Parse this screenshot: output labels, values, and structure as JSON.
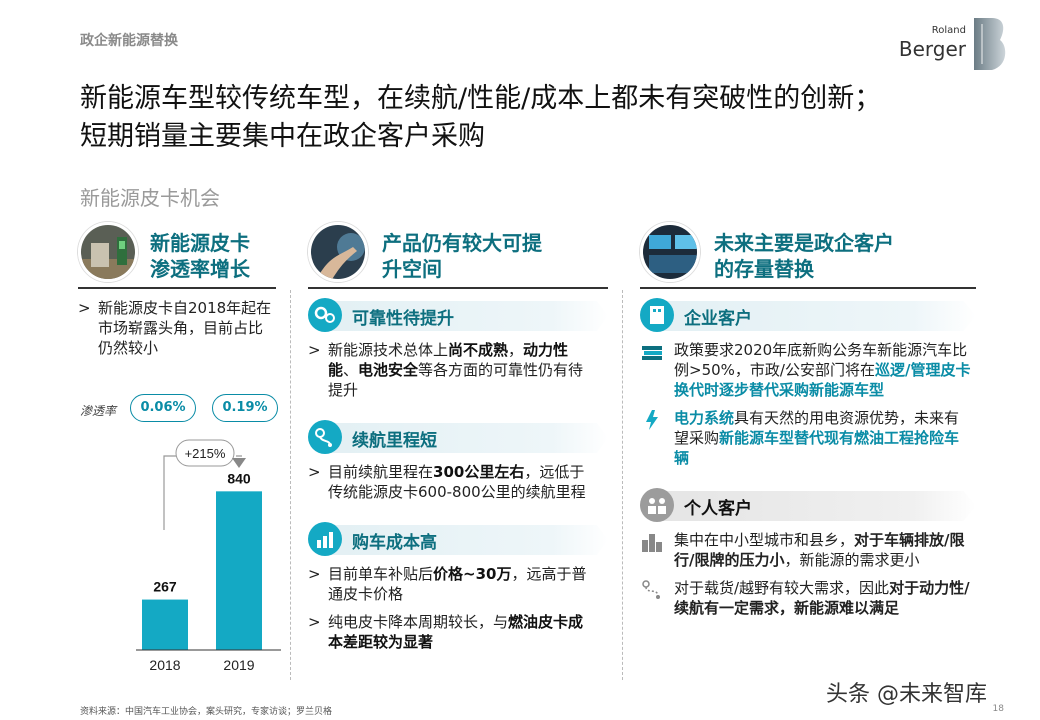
{
  "header": {
    "breadcrumb": "政企新能源替换",
    "logo_small": "Roland",
    "logo_big": "Berger",
    "title_line1": "新能源车型较传统车型，在续航/性能/成本上都未有突破性的创新；",
    "title_line2": "短期销量主要集中在政企客户采购",
    "subtitle": "新能源皮卡机会"
  },
  "col1": {
    "title_line1": "新能源皮卡",
    "title_line2": "渗透率增长",
    "bullet": "新能源皮卡自2018年起在市场崭露头角，目前占比仍然较小",
    "penetration_label": "渗透率",
    "pill_2018": "0.06%",
    "pill_2019": "0.19%",
    "growth": "+215%"
  },
  "chart_data": {
    "type": "bar",
    "categories": [
      "2018",
      "2019"
    ],
    "values": [
      267,
      840
    ],
    "value_labels": [
      "267",
      "840"
    ],
    "annotation": "+215%",
    "color": "#14a9c4",
    "ylim": [
      0,
      900
    ]
  },
  "col2": {
    "title_line1": "产品仍有较大可提",
    "title_line2": "升空间",
    "sections": [
      {
        "label": "可靠性待提升",
        "icon": "gears-icon",
        "bullets": [
          [
            {
              "t": "新能源技术总体上",
              "s": "n"
            },
            {
              "t": "尚不成熟",
              "s": "b"
            },
            {
              "t": "，",
              "s": "n"
            },
            {
              "t": "动力性能",
              "s": "b"
            },
            {
              "t": "、",
              "s": "n"
            },
            {
              "t": "电池安全",
              "s": "b"
            },
            {
              "t": "等各方面的可靠性仍有待提升",
              "s": "n"
            }
          ]
        ]
      },
      {
        "label": "续航里程短",
        "icon": "route-icon",
        "bullets": [
          [
            {
              "t": "目前续航里程在",
              "s": "n"
            },
            {
              "t": "300公里左右",
              "s": "b"
            },
            {
              "t": "，远低于传统能源皮卡600-800公里的续航里程",
              "s": "n"
            }
          ]
        ]
      },
      {
        "label": "购车成本高",
        "icon": "cost-icon",
        "bullets": [
          [
            {
              "t": "目前单车补贴后",
              "s": "n"
            },
            {
              "t": "价格~30万",
              "s": "b"
            },
            {
              "t": "，远高于普通皮卡价格",
              "s": "n"
            }
          ],
          [
            {
              "t": "纯电皮卡降本周期较长，与",
              "s": "n"
            },
            {
              "t": "燃油皮卡成本差距较为显著",
              "s": "b"
            }
          ]
        ]
      }
    ]
  },
  "col3": {
    "title_line1": "未来主要是政企客户",
    "title_line2": "的存量替换",
    "sections": [
      {
        "label": "企业客户",
        "style": "teal",
        "icon": "building-icon",
        "items": [
          {
            "icon": "books-icon",
            "runs": [
              {
                "t": "政策要求2020年底新购公务车新能源汽车比例>50%，市政/公安部门将在",
                "s": "n"
              },
              {
                "t": "巡逻/管理皮卡换代时逐步替代采购新能源车型",
                "s": "h"
              }
            ]
          },
          {
            "icon": "power-icon",
            "runs": [
              {
                "t": "电力系统",
                "s": "h"
              },
              {
                "t": "具有天然的用电资源优势，未来有望采购",
                "s": "n"
              },
              {
                "t": "新能源车型替代现有燃油工程抢险车辆",
                "s": "h"
              }
            ]
          }
        ]
      },
      {
        "label": "个人客户",
        "style": "gray",
        "icon": "people-icon",
        "items": [
          {
            "icon": "city-icon",
            "runs": [
              {
                "t": "集中在中小型城市和县乡，",
                "s": "n"
              },
              {
                "t": "对于车辆排放/限行/限牌的压力小",
                "s": "b"
              },
              {
                "t": "，新能源的需求更小",
                "s": "n"
              }
            ]
          },
          {
            "icon": "map-route-icon",
            "runs": [
              {
                "t": "对于载货/越野有较大需求，因此",
                "s": "n"
              },
              {
                "t": "对于动力性/续航有一定需求，新能源难以满足",
                "s": "b"
              }
            ]
          }
        ]
      }
    ]
  },
  "footer": {
    "source": "资料来源：中国汽车工业协会，案头研究，专家访谈；罗兰贝格",
    "page": "18",
    "watermark": "头条 @未来智库"
  },
  "colors": {
    "teal": "#14a9c4",
    "dark_teal": "#0d6f7f",
    "highlight": "#0a8ca6"
  }
}
